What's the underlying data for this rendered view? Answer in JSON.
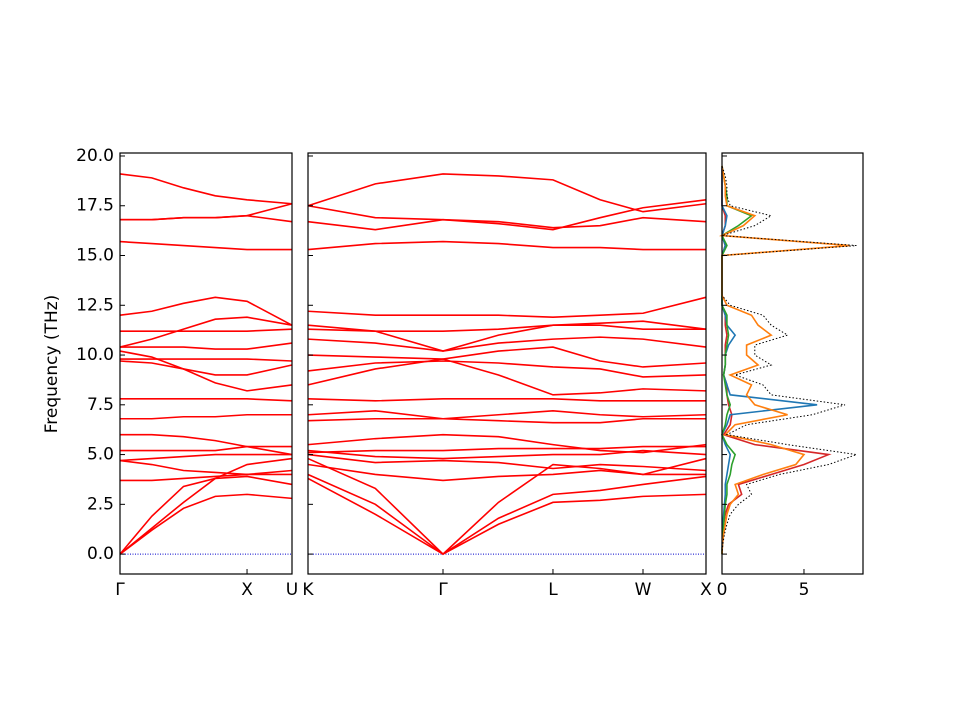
{
  "chart_data": [
    {
      "type": "line",
      "ylabel": "Frequency (THz)",
      "color": "#ff0000",
      "xlim": [
        0,
        1.354
      ],
      "xticks": [
        {
          "value": 0,
          "label": "Γ"
        },
        {
          "value": 1,
          "label": "X"
        },
        {
          "value": 1.354,
          "label": "U"
        }
      ],
      "ylim": [
        -1,
        20.15
      ],
      "yticks": [
        {
          "value": 0,
          "label": "0.0"
        },
        {
          "value": 2.5,
          "label": "2.5"
        },
        {
          "value": 5,
          "label": "5.0"
        },
        {
          "value": 7.5,
          "label": "7.5"
        },
        {
          "value": 10,
          "label": "10.0"
        },
        {
          "value": 12.5,
          "label": "12.5"
        },
        {
          "value": 15,
          "label": "15.0"
        },
        {
          "value": 17.5,
          "label": "17.5"
        },
        {
          "value": 20,
          "label": "20.0"
        }
      ],
      "x": [
        0,
        0.25,
        0.5,
        0.75,
        1.0,
        1.354
      ],
      "series": [
        {
          "values": [
            0,
            1.2,
            2.3,
            2.9,
            3.0,
            2.8
          ]
        },
        {
          "values": [
            0,
            1.3,
            2.6,
            3.8,
            4.5,
            4.8
          ]
        },
        {
          "values": [
            0,
            1.9,
            3.4,
            3.8,
            3.9,
            3.5
          ]
        },
        {
          "values": [
            3.7,
            3.7,
            3.8,
            3.9,
            4.0,
            4.0
          ]
        },
        {
          "values": [
            4.7,
            4.5,
            4.2,
            4.1,
            4.0,
            4.2
          ]
        },
        {
          "values": [
            4.7,
            4.8,
            4.9,
            5.0,
            5.0,
            5.0
          ]
        },
        {
          "values": [
            5.2,
            5.2,
            5.2,
            5.2,
            5.4,
            5.4
          ]
        },
        {
          "values": [
            6.0,
            6.0,
            5.9,
            5.7,
            5.4,
            5.0
          ]
        },
        {
          "values": [
            6.8,
            6.8,
            6.9,
            6.9,
            7.0,
            7.0
          ]
        },
        {
          "values": [
            7.8,
            7.8,
            7.8,
            7.8,
            7.8,
            7.7
          ]
        },
        {
          "values": [
            9.7,
            9.6,
            9.3,
            9.0,
            9.0,
            9.5
          ]
        },
        {
          "values": [
            9.8,
            9.8,
            9.8,
            9.8,
            9.8,
            9.7
          ]
        },
        {
          "values": [
            10.2,
            9.9,
            9.3,
            8.6,
            8.2,
            8.5
          ]
        },
        {
          "values": [
            10.4,
            10.4,
            10.4,
            10.3,
            10.3,
            10.6
          ]
        },
        {
          "values": [
            10.4,
            10.8,
            11.3,
            11.8,
            11.9,
            11.5
          ]
        },
        {
          "values": [
            11.2,
            11.2,
            11.2,
            11.2,
            11.2,
            11.3
          ]
        },
        {
          "values": [
            12.0,
            12.2,
            12.6,
            12.9,
            12.7,
            11.5
          ]
        },
        {
          "values": [
            15.7,
            15.6,
            15.5,
            15.4,
            15.3,
            15.3
          ]
        },
        {
          "values": [
            16.8,
            16.8,
            16.9,
            16.9,
            17.0,
            17.6
          ]
        },
        {
          "values": [
            16.8,
            16.8,
            16.9,
            16.9,
            17.0,
            16.7
          ]
        },
        {
          "values": [
            19.1,
            18.9,
            18.4,
            18.0,
            17.8,
            17.6
          ]
        }
      ]
    },
    {
      "type": "line",
      "color": "#ff0000",
      "xlim": [
        0,
        3.134
      ],
      "xticks": [
        {
          "value": 0,
          "label": "K"
        },
        {
          "value": 1.063,
          "label": "Γ"
        },
        {
          "value": 1.929,
          "label": "L"
        },
        {
          "value": 2.638,
          "label": "W"
        },
        {
          "value": 3.134,
          "label": "X"
        }
      ],
      "x": [
        0,
        0.53,
        1.063,
        1.5,
        1.929,
        2.3,
        2.638,
        3.134
      ],
      "series": [
        {
          "values": [
            3.8,
            2.0,
            0,
            1.5,
            2.6,
            2.7,
            2.9,
            3.0
          ]
        },
        {
          "values": [
            4.0,
            2.5,
            0,
            1.8,
            3.0,
            3.2,
            3.5,
            3.9
          ]
        },
        {
          "values": [
            4.8,
            3.3,
            0,
            2.6,
            4.5,
            4.3,
            4.0,
            4.8
          ]
        },
        {
          "values": [
            4.5,
            4.0,
            3.7,
            3.9,
            4.0,
            4.2,
            4.0,
            4.0
          ]
        },
        {
          "values": [
            5.0,
            4.6,
            4.7,
            4.6,
            4.3,
            4.5,
            4.4,
            4.2
          ]
        },
        {
          "values": [
            5.2,
            4.9,
            4.8,
            4.9,
            5.0,
            5.0,
            5.2,
            5.0
          ]
        },
        {
          "values": [
            5.1,
            5.2,
            5.2,
            5.3,
            5.3,
            5.3,
            5.4,
            5.4
          ]
        },
        {
          "values": [
            5.5,
            5.8,
            6.0,
            5.9,
            5.5,
            5.2,
            5.1,
            5.5
          ]
        },
        {
          "values": [
            6.7,
            6.8,
            6.8,
            7.0,
            7.2,
            7.0,
            6.9,
            7.0
          ]
        },
        {
          "values": [
            7.0,
            7.2,
            6.8,
            6.7,
            6.6,
            6.6,
            6.8,
            6.8
          ]
        },
        {
          "values": [
            7.8,
            7.7,
            7.8,
            7.8,
            7.8,
            7.7,
            7.7,
            7.7
          ]
        },
        {
          "values": [
            8.5,
            9.3,
            9.8,
            9.0,
            8.0,
            8.1,
            8.3,
            8.2
          ]
        },
        {
          "values": [
            9.2,
            9.6,
            9.7,
            9.6,
            9.4,
            9.3,
            8.9,
            9.0
          ]
        },
        {
          "values": [
            10.0,
            9.9,
            9.8,
            10.2,
            10.4,
            9.7,
            9.4,
            9.6
          ]
        },
        {
          "values": [
            10.8,
            10.6,
            10.2,
            10.6,
            10.8,
            10.9,
            10.8,
            10.4
          ]
        },
        {
          "values": [
            11.5,
            11.2,
            10.2,
            11.0,
            11.5,
            11.5,
            11.3,
            11.3
          ]
        },
        {
          "values": [
            11.3,
            11.2,
            11.2,
            11.3,
            11.5,
            11.6,
            11.7,
            11.3
          ]
        },
        {
          "values": [
            12.2,
            12.0,
            12.0,
            12.0,
            11.9,
            12.0,
            12.1,
            12.9
          ]
        },
        {
          "values": [
            15.3,
            15.6,
            15.7,
            15.6,
            15.4,
            15.4,
            15.3,
            15.3
          ]
        },
        {
          "values": [
            16.7,
            16.3,
            16.8,
            16.6,
            16.3,
            16.9,
            17.4,
            17.8
          ]
        },
        {
          "values": [
            17.5,
            16.9,
            16.8,
            16.7,
            16.4,
            16.5,
            16.9,
            16.7
          ]
        },
        {
          "values": [
            17.5,
            18.6,
            19.1,
            19.0,
            18.8,
            17.8,
            17.2,
            17.6
          ]
        }
      ]
    },
    {
      "type": "line",
      "orientation": "horizontal",
      "xlim": [
        0,
        8.6
      ],
      "xticks": [
        0,
        5
      ],
      "y": [
        0,
        0.5,
        1,
        1.5,
        2,
        2.5,
        3,
        3.5,
        4,
        4.5,
        5,
        5.5,
        6,
        6.5,
        7,
        7.5,
        8,
        8.5,
        9,
        9.5,
        10,
        10.5,
        11,
        11.5,
        12,
        12.5,
        13,
        13.5,
        14,
        14.5,
        15,
        15.5,
        16,
        16.5,
        17,
        17.5,
        18,
        18.5,
        19,
        19.5
      ],
      "series": [
        {
          "color": "#d62728",
          "dash": false,
          "values": [
            0,
            0.02,
            0.05,
            0.1,
            0.2,
            0.4,
            1.2,
            1.0,
            3.0,
            5.0,
            6.5,
            2.0,
            0.1,
            0.5,
            0.6,
            0.4,
            0.3,
            0.3,
            0.1,
            0.2,
            0.2,
            0.2,
            0.3,
            0.2,
            0.2,
            0,
            0,
            0,
            0,
            0,
            0,
            0.2,
            0,
            0.2,
            0.2,
            0,
            0,
            0,
            0,
            0
          ]
        },
        {
          "color": "#1f77b4",
          "dash": false,
          "values": [
            0,
            0.01,
            0.03,
            0.05,
            0.1,
            0.15,
            0.2,
            0.2,
            0.3,
            0.4,
            0.5,
            0.2,
            0,
            0.3,
            0.5,
            5.8,
            0.5,
            0.3,
            0.1,
            0.2,
            0.2,
            0.4,
            0.8,
            0.3,
            0.2,
            0,
            0,
            0,
            0,
            0,
            0,
            0.2,
            0,
            0.2,
            0.3,
            0,
            0,
            0,
            0,
            0
          ]
        },
        {
          "color": "#2ca02c",
          "dash": false,
          "values": [
            0,
            0.02,
            0.05,
            0.1,
            0.15,
            0.2,
            0.3,
            0.3,
            0.5,
            0.6,
            0.8,
            0.3,
            0,
            0.2,
            0.3,
            0.5,
            0.3,
            0.2,
            0.1,
            0.2,
            0.2,
            0.3,
            0.4,
            0.3,
            0.3,
            0,
            0,
            0,
            0,
            0,
            0,
            0.3,
            0,
            1.0,
            1.8,
            0.3,
            0.3,
            0.2,
            0.1,
            0
          ]
        },
        {
          "color": "#ff7f0e",
          "dash": false,
          "values": [
            0,
            0.03,
            0.1,
            0.2,
            0.3,
            0.5,
            1.0,
            0.8,
            2.5,
            4.5,
            5.0,
            3.0,
            0.2,
            0.8,
            4.0,
            2.0,
            1.5,
            1.8,
            0.5,
            2.2,
            1.5,
            1.5,
            3.0,
            2.2,
            1.8,
            0.3,
            0,
            0,
            0,
            0,
            0,
            7.8,
            0,
            1.3,
            2.0,
            0.3,
            0.2,
            0.2,
            0.1,
            0
          ]
        },
        {
          "color": "#000000",
          "dash": true,
          "values": [
            0,
            0.05,
            0.15,
            0.3,
            0.5,
            1.0,
            1.8,
            1.5,
            3.5,
            6.5,
            8.2,
            4.0,
            0.3,
            1.5,
            5.5,
            7.5,
            3.0,
            2.5,
            0.8,
            3.0,
            2.0,
            2.0,
            4.0,
            3.0,
            2.5,
            0.5,
            0,
            0,
            0,
            0,
            0,
            8.2,
            0,
            2.0,
            3.0,
            0.5,
            0.3,
            0.3,
            0.2,
            0
          ]
        }
      ]
    }
  ]
}
